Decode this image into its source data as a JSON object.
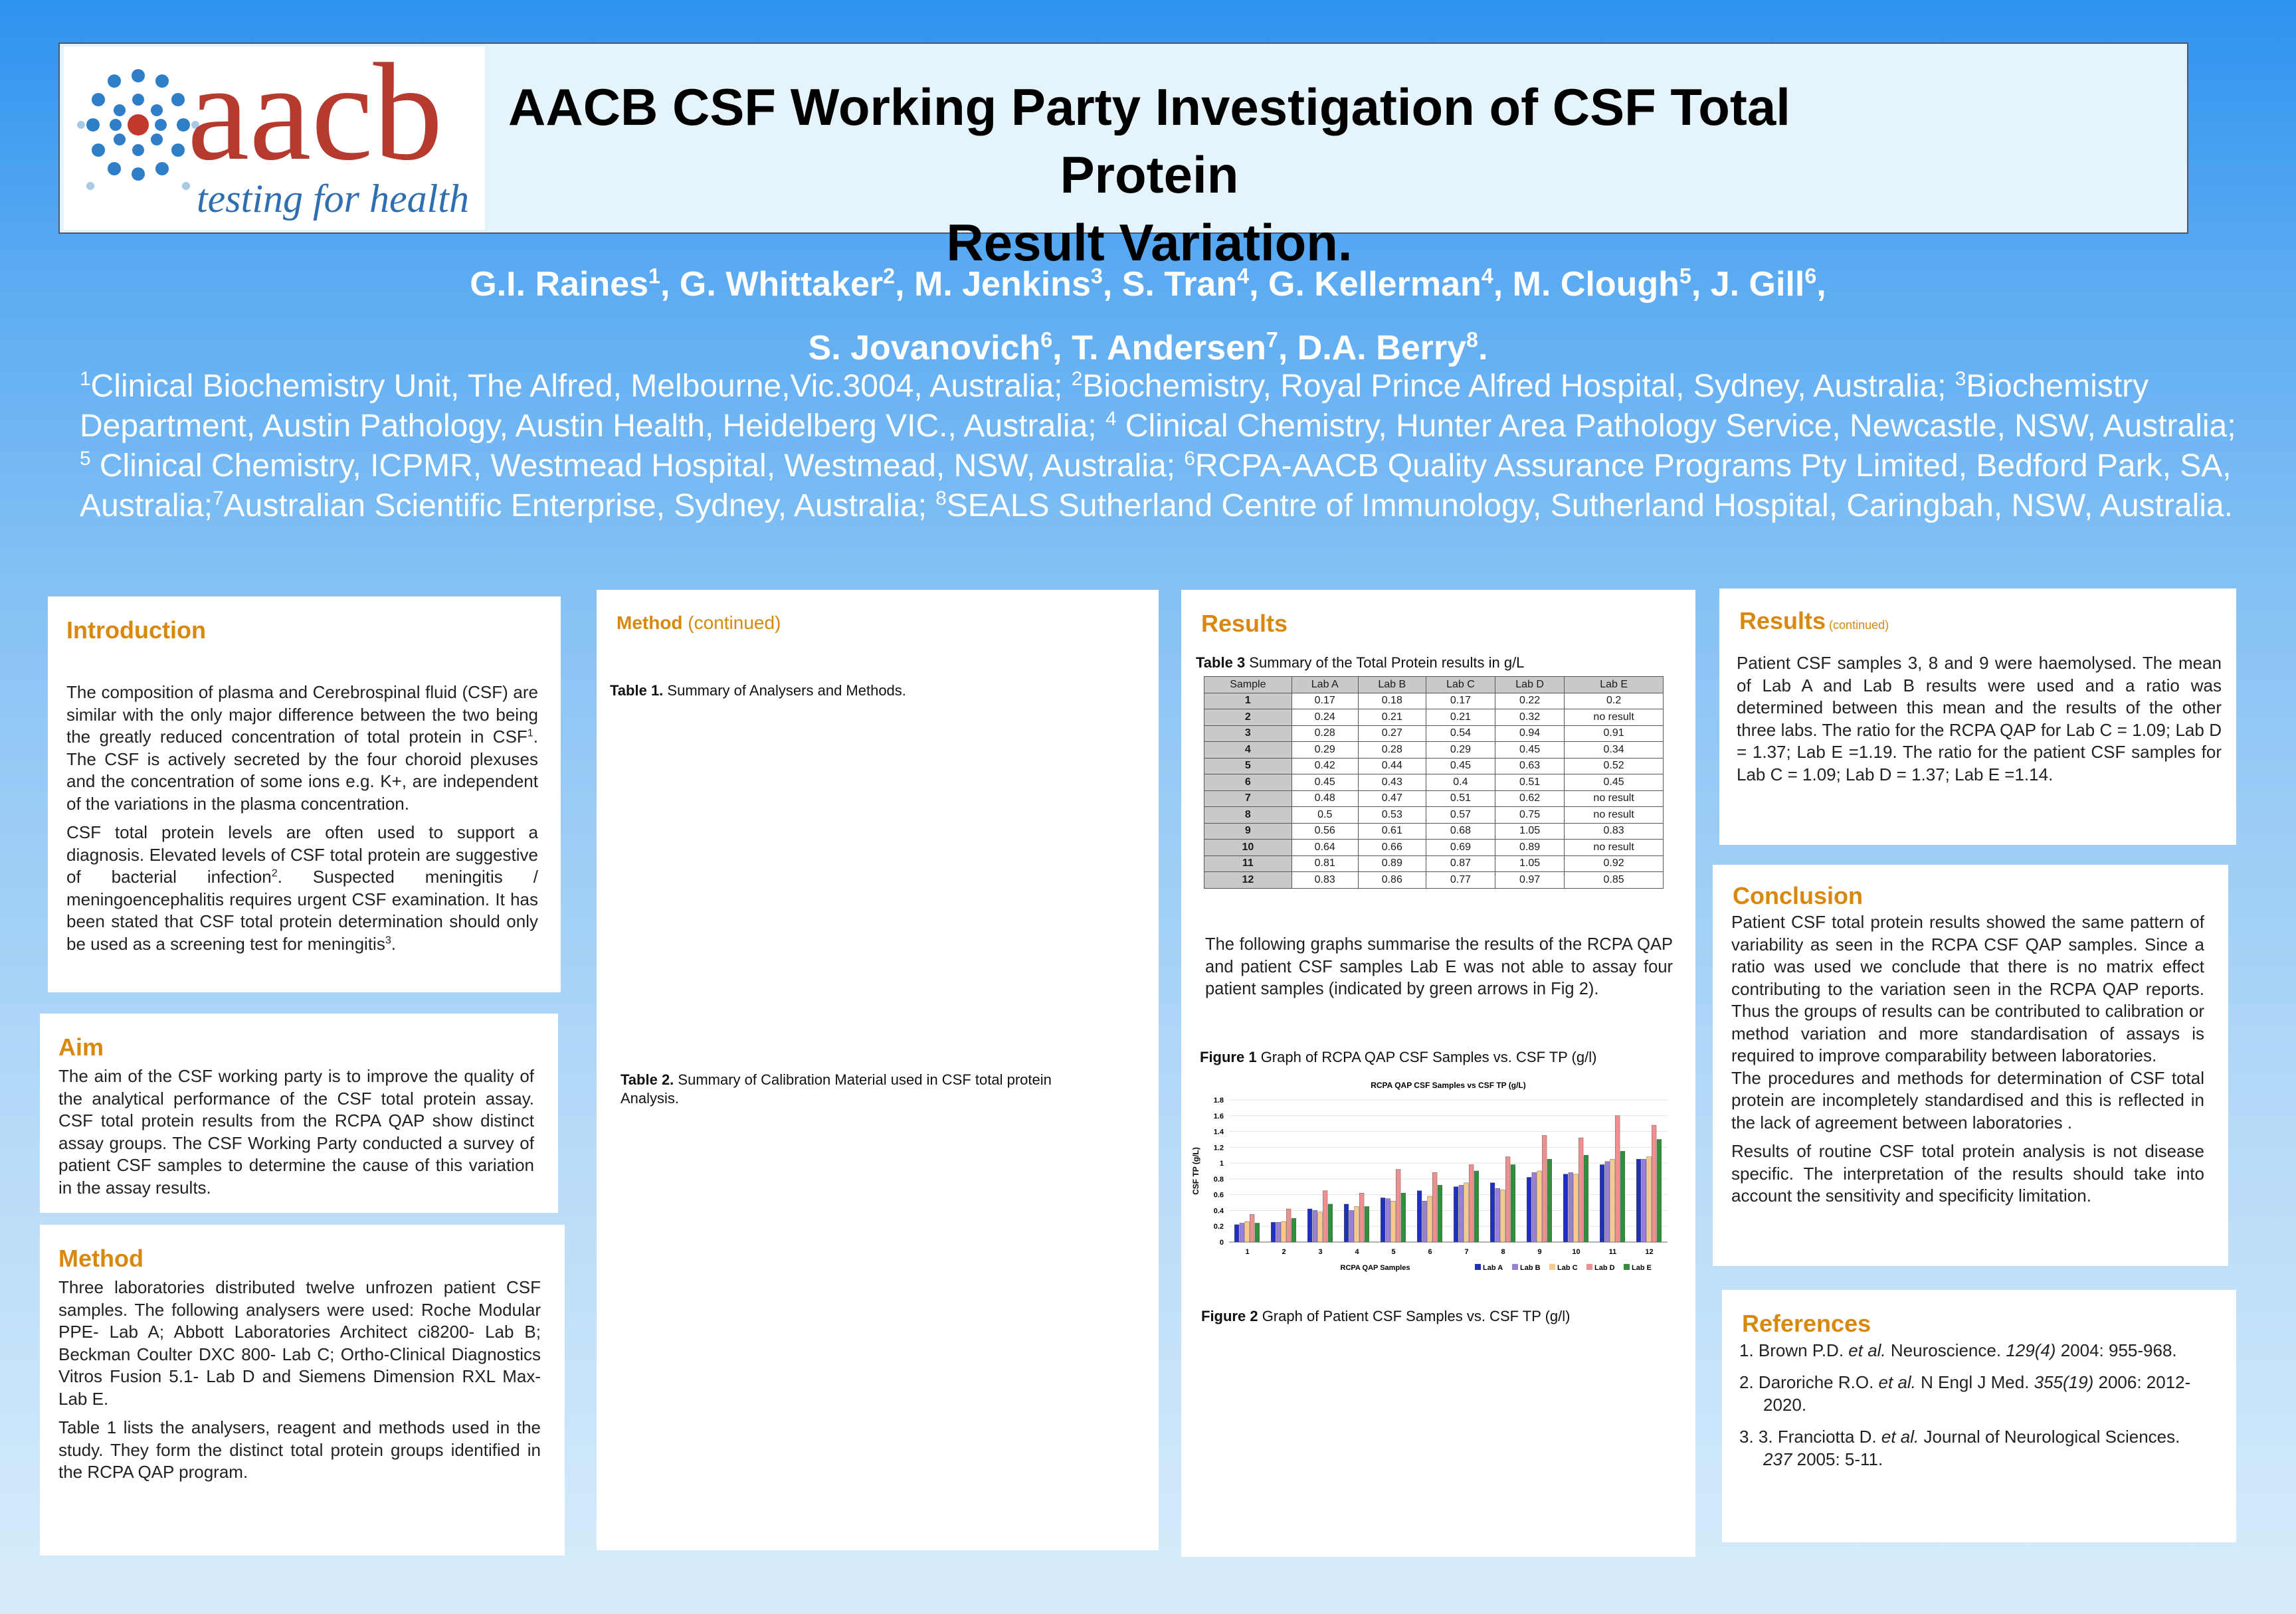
{
  "header": {
    "logo_main": "aacb",
    "logo_tagline": "testing for health",
    "title_line1": "AACB CSF Working Party Investigation of CSF Total Protein",
    "title_line2": "Result Variation."
  },
  "authors": {
    "line1": [
      {
        "name": "G.I. Raines",
        "sup": "1",
        "sep": ", "
      },
      {
        "name": "G. Whittaker",
        "sup": "2",
        "sep": ", "
      },
      {
        "name": "M. Jenkins",
        "sup": "3",
        "sep": ", "
      },
      {
        "name": "S. Tran",
        "sup": "4",
        "sep": ", "
      },
      {
        "name": "G. Kellerman",
        "sup": "4",
        "sep": ", "
      },
      {
        "name": "M. Clough",
        "sup": "5",
        "sep": ", "
      },
      {
        "name": "J. Gill",
        "sup": "6",
        "sep": ","
      }
    ],
    "line2": [
      {
        "name": "S. Jovanovich",
        "sup": "6",
        "sep": ", "
      },
      {
        "name": "T. Andersen",
        "sup": "7",
        "sep": ", "
      },
      {
        "name": "D.A. Berry",
        "sup": "8",
        "sep": "."
      }
    ]
  },
  "affiliations": [
    {
      "sup": "1",
      "text": "Clinical Biochemistry Unit, The Alfred, Melbourne,Vic.3004, Australia; "
    },
    {
      "sup": "2",
      "text": "Biochemistry, Royal Prince Alfred Hospital, Sydney, Australia; "
    },
    {
      "sup": "3",
      "text": "Biochemistry Department, Austin Pathology, Austin Health, Heidelberg VIC., Australia; "
    },
    {
      "sup": "4",
      "text": " Clinical Chemistry, Hunter Area Pathology Service, Newcastle, NSW, Australia; "
    },
    {
      "sup": "5",
      "text": " Clinical Chemistry, ICPMR, Westmead Hospital, Westmead, NSW, Australia; "
    },
    {
      "sup": "6",
      "text": "RCPA-AACB Quality Assurance Programs Pty Limited, Bedford Park, SA, Australia;"
    },
    {
      "sup": "7",
      "text": "Australian Scientific Enterprise, Sydney, Australia; "
    },
    {
      "sup": "8",
      "text": "SEALS Sutherland Centre of Immunology, Sutherland Hospital, Caringbah, NSW, Australia."
    }
  ],
  "introduction": {
    "heading": "Introduction",
    "p1": "The composition of plasma and Cerebrospinal fluid (CSF) are similar with the only major difference between the two being the greatly reduced concentration of total protein in CSF",
    "p1_sup": "1",
    "p1_tail": ". The CSF is actively secreted by the four choroid plexuses and the concentration of some ions e.g. K+, are independent of the variations in the plasma concentration.",
    "p2": "CSF total protein levels are often used to support a diagnosis. Elevated levels of CSF total protein are suggestive of bacterial infection",
    "p2_sup": "2",
    "p2_mid": ". Suspected meningitis / meningoencephalitis requires urgent CSF examination. It has been stated that CSF total protein determination should only be used as a screening test for meningitis",
    "p2_sup2": "3",
    "p2_tail": "."
  },
  "aim": {
    "heading": "Aim",
    "text": "The aim of the CSF  working party is to improve the quality of the analytical performance of the CSF total protein assay. CSF total protein results from the RCPA QAP show distinct assay groups. The CSF Working Party conducted a survey of patient CSF samples to determine the cause of this variation in the assay results."
  },
  "method": {
    "heading": "Method",
    "p1": "Three laboratories distributed twelve unfrozen patient CSF samples. The following analysers were used: Roche Modular PPE- Lab A; Abbott Laboratories Architect ci8200- Lab B; Beckman Coulter DXC 800- Lab C; Ortho-Clinical Diagnostics Vitros Fusion 5.1- Lab D and Siemens Dimension RXL Max- Lab E.",
    "p2": "Table 1 lists the analysers, reagent and methods used in the study. They form the distinct total protein groups identified in the RCPA QAP program."
  },
  "method_cont": {
    "heading": "Method",
    "heading_suffix": " (continued)",
    "table1_label": "Table 1.",
    "table1_text": "  Summary of Analysers and  Methods.",
    "table2_label": "Table 2.",
    "table2_text": "  Summary of Calibration Material used in CSF total protein Analysis."
  },
  "results": {
    "heading": "Results",
    "table3_label": "Table 3",
    "table3_text": " Summary of the Total Protein results in g/L",
    "table3_headers": [
      "Sample",
      "Lab A",
      "Lab B",
      "Lab C",
      "Lab D",
      "Lab E"
    ],
    "table3_rows": [
      [
        "1",
        "0.17",
        "0.18",
        "0.17",
        "0.22",
        "0.2"
      ],
      [
        "2",
        "0.24",
        "0.21",
        "0.21",
        "0.32",
        "no result"
      ],
      [
        "3",
        "0.28",
        "0.27",
        "0.54",
        "0.94",
        "0.91"
      ],
      [
        "4",
        "0.29",
        "0.28",
        "0.29",
        "0.45",
        "0.34"
      ],
      [
        "5",
        "0.42",
        "0.44",
        "0.45",
        "0.63",
        "0.52"
      ],
      [
        "6",
        "0.45",
        "0.43",
        "0.4",
        "0.51",
        "0.45"
      ],
      [
        "7",
        "0.48",
        "0.47",
        "0.51",
        "0.62",
        "no result"
      ],
      [
        "8",
        "0.5",
        "0.53",
        "0.57",
        "0.75",
        "no result"
      ],
      [
        "9",
        "0.56",
        "0.61",
        "0.68",
        "1.05",
        "0.83"
      ],
      [
        "10",
        "0.64",
        "0.66",
        "0.69",
        "0.89",
        "no result"
      ],
      [
        "11",
        "0.81",
        "0.89",
        "0.87",
        "1.05",
        "0.92"
      ],
      [
        "12",
        "0.83",
        "0.86",
        "0.77",
        "0.97",
        "0.85"
      ]
    ],
    "graphs_text": "The following graphs summarise the results of the RCPA QAP and patient CSF samples Lab E was not able to assay four patient samples (indicated by green arrows in Fig 2).",
    "fig1_label": "Figure 1",
    "fig1_text": " Graph of RCPA QAP CSF Samples vs. CSF  TP (g/l)",
    "fig2_label": "Figure 2",
    "fig2_text": " Graph of Patient CSF Samples vs. CSF  TP (g/l)"
  },
  "results_cont": {
    "heading": "Results",
    "heading_suffix": " (continued)",
    "text": "Patient CSF samples 3, 8 and 9 were haemolysed. The mean of Lab A and Lab B results were used and a ratio was determined between this mean and the results of the other three labs. The ratio for the RCPA QAP for Lab C = 1.09; Lab D = 1.37; Lab E =1.19. The ratio for the patient CSF samples for Lab C = 1.09; Lab D = 1.37; Lab E =1.14."
  },
  "conclusion": {
    "heading": "Conclusion",
    "p1": "Patient CSF total protein results showed the same pattern of variability as seen in the RCPA CSF QAP samples. Since a ratio was used we conclude that there is no matrix effect contributing to the variation seen in the RCPA QAP reports. Thus the groups of results can be contributed to calibration or method variation and more standardisation of assays is required to improve comparability between laboratories.",
    "p2": "The procedures and methods for determination of  CSF total protein are incompletely standardised and this is reflected in the lack of agreement between laboratories .",
    "p3": "Results of routine CSF total protein analysis is not disease specific. The interpretation of the results should take into account the sensitivity and specificity limitation."
  },
  "references": {
    "heading": "References",
    "items": [
      {
        "num": "1.",
        "author": "Brown P.D. ",
        "etal": "et al.",
        "journal": " Neuroscience. ",
        "vol": "129(4)",
        "rest": " 2004: 955-968."
      },
      {
        "num": "2.",
        "author": "Daroriche R.O. ",
        "etal": "et al.",
        "journal": " N Engl J Med. ",
        "vol": "355(19)",
        "rest": " 2006: 2012-2020."
      },
      {
        "num": "3.",
        "author": "3. Franciotta D. ",
        "etal": "et al.",
        "journal": " Journal of Neurological Sciences. ",
        "vol": "237",
        "rest": " 2005: 5-11."
      }
    ]
  },
  "colors": {
    "lab_a": "#1f2fbf",
    "lab_b": "#9a7fd8",
    "lab_c": "#f7c98a",
    "lab_d": "#ef8f8f",
    "lab_e": "#2f8f3a",
    "heading": "#d9880e"
  },
  "chart_data": {
    "type": "bar",
    "title": "RCPA QAP CSF Samples vs CSF TP (g/L)",
    "xlabel": "RCPA QAP Samples",
    "ylabel": "CSF TP (g/L)",
    "ylim": [
      0,
      1.8
    ],
    "yticks": [
      "0",
      "0.2",
      "0.4",
      "0.6",
      "0.8",
      "1",
      "1.2",
      "1.4",
      "1.6",
      "1.8"
    ],
    "categories": [
      "1",
      "2",
      "3",
      "4",
      "5",
      "6",
      "7",
      "8",
      "9",
      "10",
      "11",
      "12"
    ],
    "legend_position": "bottom-right",
    "series": [
      {
        "name": "Lab A",
        "color": "#1f2fbf",
        "values": [
          0.22,
          0.25,
          0.42,
          0.48,
          0.56,
          0.65,
          0.7,
          0.75,
          0.82,
          0.86,
          0.98,
          1.05
        ]
      },
      {
        "name": "Lab B",
        "color": "#9a7fd8",
        "values": [
          0.24,
          0.25,
          0.4,
          0.4,
          0.55,
          0.52,
          0.72,
          0.68,
          0.88,
          0.88,
          1.02,
          1.05
        ]
      },
      {
        "name": "Lab C",
        "color": "#f7c98a",
        "values": [
          0.26,
          0.26,
          0.38,
          0.45,
          0.52,
          0.58,
          0.75,
          0.66,
          0.9,
          0.86,
          1.05,
          1.08
        ]
      },
      {
        "name": "Lab D",
        "color": "#ef8f8f",
        "values": [
          0.35,
          0.42,
          0.65,
          0.62,
          0.92,
          0.88,
          0.98,
          1.08,
          1.35,
          1.32,
          1.6,
          1.48
        ]
      },
      {
        "name": "Lab E",
        "color": "#2f8f3a",
        "values": [
          0.24,
          0.3,
          0.48,
          0.45,
          0.62,
          0.72,
          0.9,
          0.98,
          1.05,
          1.1,
          1.15,
          1.3
        ]
      }
    ]
  }
}
